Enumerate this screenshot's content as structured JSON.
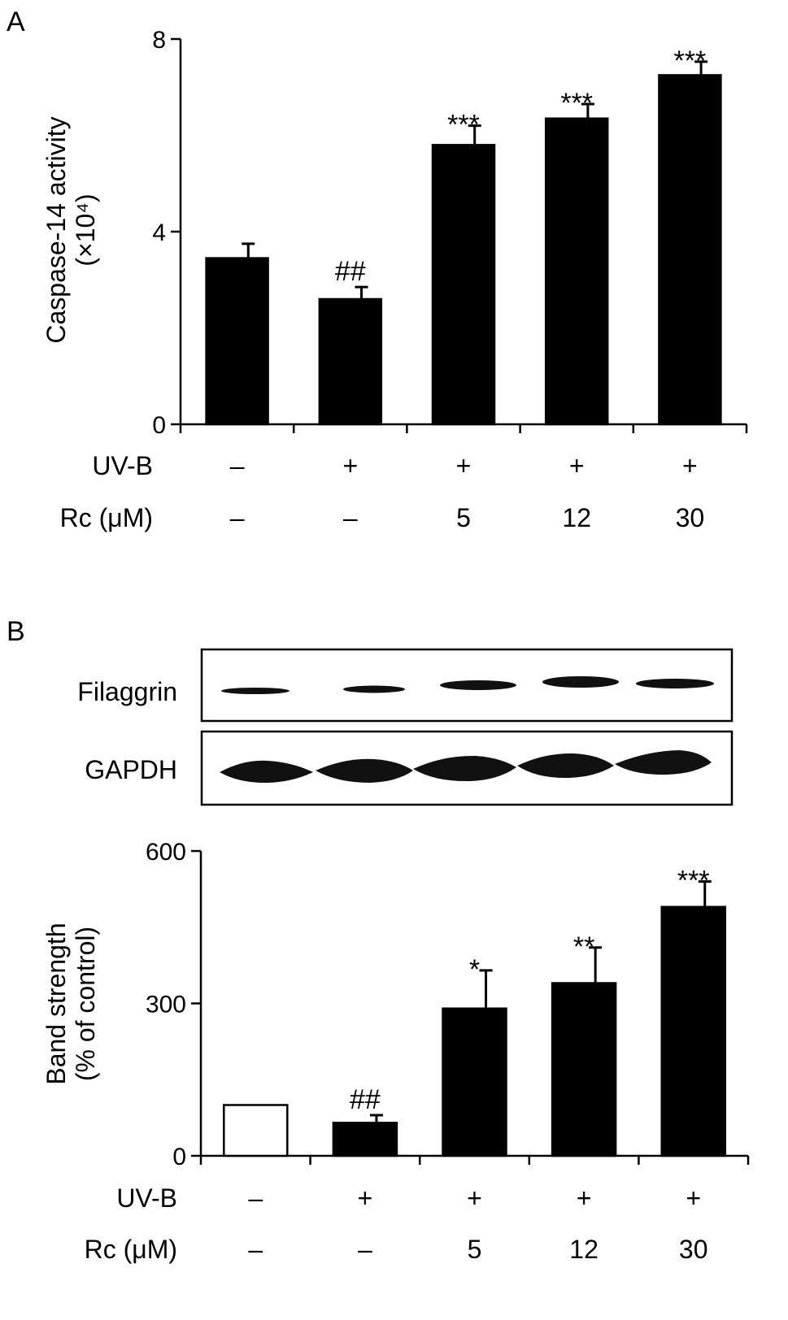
{
  "chart_data": [
    {
      "type": "bar",
      "panel_label": "A",
      "title": "",
      "ylabel": "Caspase-14 activity",
      "ylabel_sub": "(×10⁴)",
      "ylim": [
        0,
        8
      ],
      "yticks": [
        "0",
        "4",
        "8"
      ],
      "grid": false,
      "legend": "none",
      "conditions": [
        {
          "label": "UV-B",
          "values": [
            "–",
            "+",
            "+",
            "+",
            "+"
          ]
        },
        {
          "label": "Rc (μM)",
          "values": [
            "–",
            "–",
            "5",
            "12",
            "30"
          ]
        }
      ],
      "values": [
        3.45,
        2.6,
        5.8,
        6.35,
        7.25
      ],
      "errors": [
        0.3,
        0.25,
        0.4,
        0.3,
        0.28
      ],
      "fills": [
        "#000000",
        "#000000",
        "#000000",
        "#000000",
        "#000000"
      ],
      "annotations": [
        "",
        "##",
        "***",
        "***",
        "***"
      ]
    },
    {
      "type": "bar",
      "panel_label": "B",
      "title": "",
      "ylabel": "Band strength",
      "ylabel_sub": "(% of control)",
      "ylim": [
        0,
        600
      ],
      "yticks": [
        "0",
        "300",
        "600"
      ],
      "grid": false,
      "legend": "none",
      "blot_rows": [
        "Filaggrin",
        "GAPDH"
      ],
      "conditions": [
        {
          "label": "UV-B",
          "values": [
            "–",
            "+",
            "+",
            "+",
            "+"
          ]
        },
        {
          "label": "Rc (μM)",
          "values": [
            "–",
            "–",
            "5",
            "12",
            "30"
          ]
        }
      ],
      "values": [
        100,
        65,
        290,
        340,
        490
      ],
      "errors": [
        0,
        15,
        75,
        70,
        50
      ],
      "fills": [
        "#ffffff",
        "#000000",
        "#000000",
        "#000000",
        "#000000"
      ],
      "annotations": [
        "",
        "##",
        "*",
        "**",
        "***"
      ]
    }
  ]
}
